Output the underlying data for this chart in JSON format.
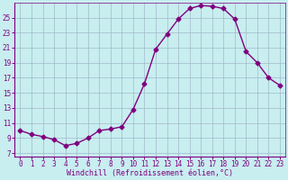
{
  "x_values": [
    0,
    1,
    2,
    3,
    4,
    5,
    6,
    7,
    8,
    9,
    10,
    11,
    12,
    13,
    14,
    15,
    16,
    17,
    18,
    19,
    20,
    21,
    22,
    23
  ],
  "y_values": [
    10.0,
    9.5,
    9.2,
    8.8,
    8.0,
    8.3,
    9.0,
    10.0,
    10.2,
    10.5,
    12.8,
    16.2,
    20.8,
    22.8,
    24.8,
    26.2,
    26.6,
    26.5,
    26.2,
    24.8,
    20.5,
    19.0,
    17.0,
    16.0
  ],
  "line_color": "#800080",
  "marker": "D",
  "marker_size": 2.5,
  "bg_color": "#c8eef0",
  "plot_bg_color": "#c8eef0",
  "grid_color": "#a0b8c8",
  "xlabel": "Windchill (Refroidissement éolien,°C)",
  "ylabel": "",
  "xlim": [
    -0.5,
    23.5
  ],
  "ylim": [
    6.5,
    27.0
  ],
  "yticks": [
    7,
    9,
    11,
    13,
    15,
    17,
    19,
    21,
    23,
    25
  ],
  "xticks": [
    0,
    1,
    2,
    3,
    4,
    5,
    6,
    7,
    8,
    9,
    10,
    11,
    12,
    13,
    14,
    15,
    16,
    17,
    18,
    19,
    20,
    21,
    22,
    23
  ],
  "tick_color": "#800080",
  "label_color": "#800080",
  "spine_color": "#800080",
  "font_family": "monospace",
  "tick_fontsize": 5.5,
  "xlabel_fontsize": 6.0
}
